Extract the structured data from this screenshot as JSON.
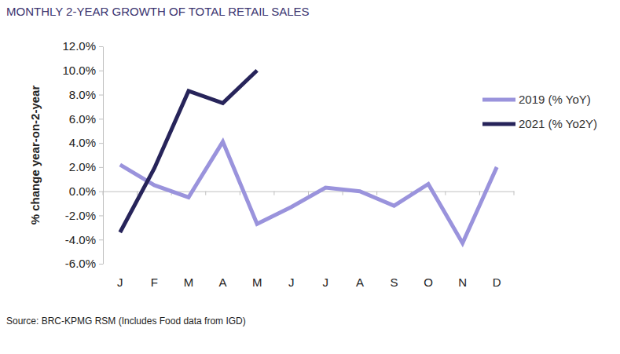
{
  "chart_data": {
    "type": "line",
    "title": "MONTHLY 2-YEAR GROWTH OF TOTAL RETAIL SALES",
    "y_label": "% change year-on-2-year",
    "source": "Source: BRC-KPMG RSM (Includes Food data from IGD)",
    "categories": [
      "J",
      "F",
      "M",
      "A",
      "M",
      "J",
      "J",
      "A",
      "S",
      "O",
      "N",
      "D"
    ],
    "series": [
      {
        "name": "2019 (% YoY)",
        "color": "#9a93dc",
        "values": [
          2.2,
          0.5,
          -0.5,
          4.1,
          -2.7,
          -1.3,
          0.3,
          0.0,
          -1.2,
          0.6,
          -4.3,
          2.0
        ]
      },
      {
        "name": "2021 (% Yo2Y)",
        "color": "#27245a",
        "values": [
          -3.4,
          1.9,
          8.3,
          7.3,
          10.0,
          null,
          null,
          null,
          null,
          null,
          null,
          null
        ]
      }
    ],
    "ylim": [
      -6,
      12
    ],
    "yticks": [
      {
        "value": -6,
        "label": "-6.0%"
      },
      {
        "value": -4,
        "label": "-4.0%"
      },
      {
        "value": -2,
        "label": "-2.0%"
      },
      {
        "value": 0,
        "label": "0.0%"
      },
      {
        "value": 2,
        "label": "2.0%"
      },
      {
        "value": 4,
        "label": "4.0%"
      },
      {
        "value": 6,
        "label": "6.0%"
      },
      {
        "value": 8,
        "label": "8.0%"
      },
      {
        "value": 10,
        "label": "10.0%"
      },
      {
        "value": 12,
        "label": "12.0%"
      }
    ],
    "grid": false,
    "legend": "right"
  }
}
